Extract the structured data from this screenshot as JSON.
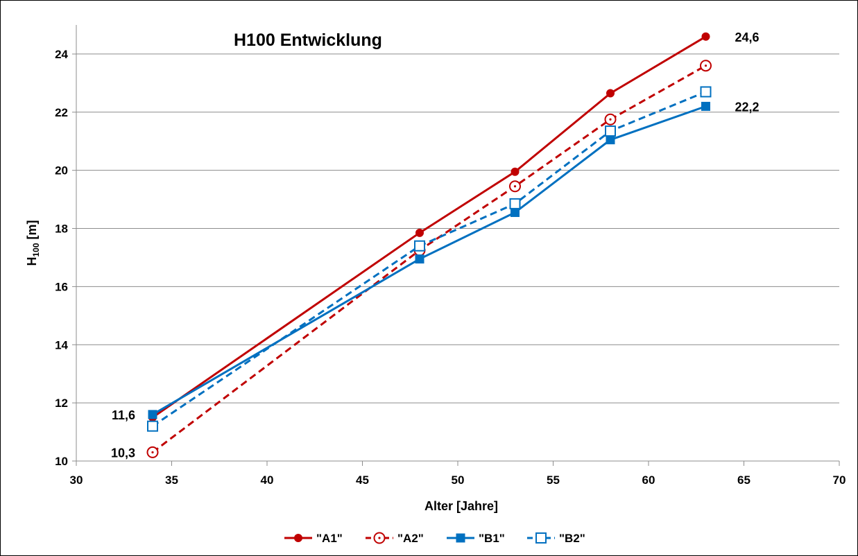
{
  "chart_data": {
    "type": "line",
    "title": "H100 Entwicklung",
    "xlabel": "Alter [Jahre]",
    "ylabel": {
      "main": "H",
      "sub": "100",
      "unit": " [m]"
    },
    "xlim": [
      30,
      70
    ],
    "ylim": [
      10,
      25
    ],
    "xticks": [
      30,
      35,
      40,
      45,
      50,
      55,
      60,
      65,
      70
    ],
    "yticks": [
      10,
      12,
      14,
      16,
      18,
      20,
      22,
      24
    ],
    "grid": "horizontal",
    "legend_position": "bottom",
    "series": [
      {
        "name": "\"A1\"",
        "color": "#c00000",
        "dash": "solid",
        "marker": "filled-circle",
        "x": [
          34,
          48,
          53,
          58,
          63
        ],
        "y": [
          11.5,
          17.85,
          19.95,
          22.65,
          24.6
        ]
      },
      {
        "name": "\"A2\"",
        "color": "#c00000",
        "dash": "dashed",
        "marker": "open-circle",
        "x": [
          34,
          48,
          53,
          58,
          63
        ],
        "y": [
          10.3,
          17.25,
          19.45,
          21.75,
          23.6
        ]
      },
      {
        "name": "\"B1\"",
        "color": "#0070c0",
        "dash": "solid",
        "marker": "filled-square",
        "x": [
          34,
          48,
          53,
          58,
          63
        ],
        "y": [
          11.6,
          16.95,
          18.55,
          21.05,
          22.2
        ]
      },
      {
        "name": "\"B2\"",
        "color": "#0070c0",
        "dash": "dashed",
        "marker": "open-square",
        "x": [
          34,
          48,
          53,
          58,
          63
        ],
        "y": [
          11.2,
          17.4,
          18.85,
          21.35,
          22.7
        ]
      }
    ],
    "annotations": [
      {
        "text": "24,6",
        "x": 63,
        "y": 24.6,
        "side": "right"
      },
      {
        "text": "22,2",
        "x": 63,
        "y": 22.2,
        "side": "right"
      },
      {
        "text": "11,6",
        "x": 34,
        "y": 11.6,
        "side": "left"
      },
      {
        "text": "10,3",
        "x": 34,
        "y": 10.3,
        "side": "left"
      }
    ]
  }
}
